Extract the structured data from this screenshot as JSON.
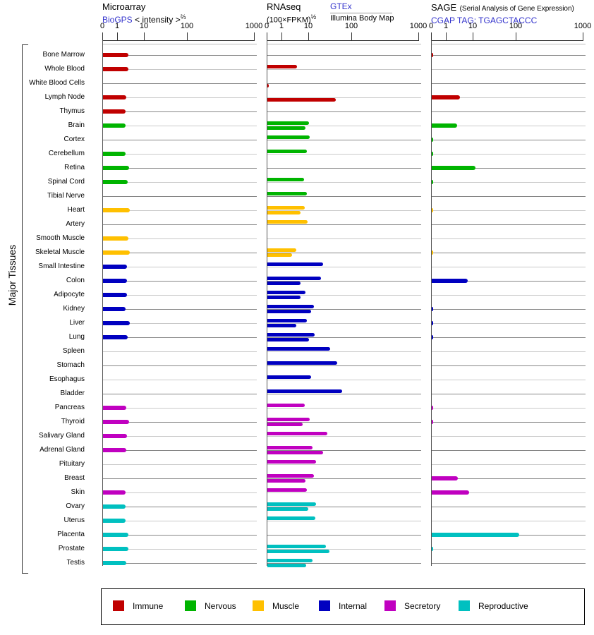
{
  "figure": {
    "left_axis_label": "Major Tissues"
  },
  "axis": {
    "ticks": [
      "0",
      "1",
      "10",
      "100",
      "1000"
    ]
  },
  "panels": [
    {
      "title": "Microarray",
      "link": "BioGPS",
      "sublabel": "< intensity >",
      "sublabel_exp": "⅔"
    },
    {
      "title": "RNAseq",
      "sublabel": "(100×FPKM)",
      "sublabel_exp": "½",
      "link": "GTEx",
      "sublink": "Illumina Body Map"
    },
    {
      "title": "SAGE",
      "title_note": "(Serial Analysis of Gene Expression)",
      "link": "CGAP",
      "tag_label": "TAG: TGAGCTACCC"
    }
  ],
  "legend": {
    "items": [
      {
        "key": "immune",
        "label": "Immune",
        "color": "#C00000"
      },
      {
        "key": "nervous",
        "label": "Nervous",
        "color": "#00B400"
      },
      {
        "key": "muscle",
        "label": "Muscle",
        "color": "#FFC000"
      },
      {
        "key": "internal",
        "label": "Internal",
        "color": "#0000C0"
      },
      {
        "key": "secretory",
        "label": "Secretory",
        "color": "#C000C0"
      },
      {
        "key": "reproductive",
        "label": "Reproductive",
        "color": "#00C0C0"
      }
    ]
  },
  "chart_data": {
    "type": "bar",
    "orientation": "horizontal",
    "xscale": "compressed-log",
    "x_ticks": [
      0,
      1,
      10,
      100,
      1000
    ],
    "panel_names": [
      "Microarray",
      "RNAseq",
      "SAGE"
    ],
    "rnaseq_sources": [
      "GTEx",
      "Illumina Body Map"
    ],
    "tissues": [
      {
        "name": "Bone Marrow",
        "group": "immune",
        "microarray": 2.5,
        "rnaseq_gtex": null,
        "rnaseq_illumina": null,
        "sage": 0.1
      },
      {
        "name": "Whole Blood",
        "group": "immune",
        "microarray": 2.5,
        "rnaseq_gtex": 3.6,
        "rnaseq_illumina": null,
        "sage": null
      },
      {
        "name": "White Blood Cells",
        "group": "immune",
        "microarray": null,
        "rnaseq_gtex": null,
        "rnaseq_illumina": 0.1,
        "sage": null
      },
      {
        "name": "Lymph Node",
        "group": "immune",
        "microarray": 2.1,
        "rnaseq_gtex": null,
        "rnaseq_illumina": 42,
        "sage": 3.2
      },
      {
        "name": "Thymus",
        "group": "immune",
        "microarray": 2.0,
        "rnaseq_gtex": null,
        "rnaseq_illumina": null,
        "sage": null
      },
      {
        "name": "Brain",
        "group": "nervous",
        "microarray": 2.0,
        "rnaseq_gtex": 10,
        "rnaseq_illumina": 7.4,
        "sage": 2.5
      },
      {
        "name": "Cortex",
        "group": "nervous",
        "microarray": null,
        "rnaseq_gtex": 10.5,
        "rnaseq_illumina": null,
        "sage": 0.1
      },
      {
        "name": "Cerebellum",
        "group": "nervous",
        "microarray": 2.0,
        "rnaseq_gtex": 8.3,
        "rnaseq_illumina": null,
        "sage": 0.1
      },
      {
        "name": "Retina",
        "group": "nervous",
        "microarray": 2.6,
        "rnaseq_gtex": null,
        "rnaseq_illumina": null,
        "sage": 11
      },
      {
        "name": "Spinal Cord",
        "group": "nervous",
        "microarray": 2.3,
        "rnaseq_gtex": 6.5,
        "rnaseq_illumina": null,
        "sage": 0.1
      },
      {
        "name": "Tibial Nerve",
        "group": "nervous",
        "microarray": null,
        "rnaseq_gtex": 8.3,
        "rnaseq_illumina": null,
        "sage": null
      },
      {
        "name": "Heart",
        "group": "muscle",
        "microarray": 2.8,
        "rnaseq_gtex": 7.0,
        "rnaseq_illumina": 4.8,
        "sage": 0.1
      },
      {
        "name": "Artery",
        "group": "muscle",
        "microarray": null,
        "rnaseq_gtex": 8.9,
        "rnaseq_illumina": null,
        "sage": null
      },
      {
        "name": "Smooth Muscle",
        "group": "muscle",
        "microarray": 2.5,
        "rnaseq_gtex": null,
        "rnaseq_illumina": null,
        "sage": null
      },
      {
        "name": "Skeletal Muscle",
        "group": "muscle",
        "microarray": 2.8,
        "rnaseq_gtex": 3.4,
        "rnaseq_illumina": 2.3,
        "sage": 0.1
      },
      {
        "name": "Small Intestine",
        "group": "internal",
        "microarray": 2.2,
        "rnaseq_gtex": 21,
        "rnaseq_illumina": null,
        "sage": null
      },
      {
        "name": "Colon",
        "group": "internal",
        "microarray": 2.2,
        "rnaseq_gtex": 19,
        "rnaseq_illumina": 4.8,
        "sage": 6.2
      },
      {
        "name": "Adipocyte",
        "group": "internal",
        "microarray": 2.2,
        "rnaseq_gtex": 7.4,
        "rnaseq_illumina": 4.8,
        "sage": null
      },
      {
        "name": "Kidney",
        "group": "internal",
        "microarray": 2.0,
        "rnaseq_gtex": 13,
        "rnaseq_illumina": 11,
        "sage": 0.1
      },
      {
        "name": "Liver",
        "group": "internal",
        "microarray": 2.8,
        "rnaseq_gtex": 8.3,
        "rnaseq_illumina": 3.4,
        "sage": 0.1
      },
      {
        "name": "Lung",
        "group": "internal",
        "microarray": 2.3,
        "rnaseq_gtex": 13.5,
        "rnaseq_illumina": 10,
        "sage": 0.1
      },
      {
        "name": "Spleen",
        "group": "internal",
        "microarray": null,
        "rnaseq_gtex": 31,
        "rnaseq_illumina": null,
        "sage": null
      },
      {
        "name": "Stomach",
        "group": "internal",
        "microarray": null,
        "rnaseq_gtex": 45,
        "rnaseq_illumina": null,
        "sage": null
      },
      {
        "name": "Esophagus",
        "group": "internal",
        "microarray": null,
        "rnaseq_gtex": 11,
        "rnaseq_illumina": null,
        "sage": null
      },
      {
        "name": "Bladder",
        "group": "internal",
        "microarray": null,
        "rnaseq_gtex": 59,
        "rnaseq_illumina": null,
        "sage": null
      },
      {
        "name": "Pancreas",
        "group": "secretory",
        "microarray": 2.1,
        "rnaseq_gtex": 7.0,
        "rnaseq_illumina": null,
        "sage": 0.1
      },
      {
        "name": "Thyroid",
        "group": "secretory",
        "microarray": 2.6,
        "rnaseq_gtex": 10.4,
        "rnaseq_illumina": 5.8,
        "sage": 0.1
      },
      {
        "name": "Salivary Gland",
        "group": "secretory",
        "microarray": 2.2,
        "rnaseq_gtex": 27,
        "rnaseq_illumina": null,
        "sage": null
      },
      {
        "name": "Adrenal Gland",
        "group": "secretory",
        "microarray": 2.1,
        "rnaseq_gtex": 12,
        "rnaseq_illumina": 21,
        "sage": null
      },
      {
        "name": "Pituitary",
        "group": "secretory",
        "microarray": null,
        "rnaseq_gtex": 14.6,
        "rnaseq_illumina": null,
        "sage": null
      },
      {
        "name": "Breast",
        "group": "secretory",
        "microarray": null,
        "rnaseq_gtex": 13,
        "rnaseq_illumina": 7.4,
        "sage": 2.6
      },
      {
        "name": "Skin",
        "group": "secretory",
        "microarray": 2.0,
        "rnaseq_gtex": 8.3,
        "rnaseq_illumina": null,
        "sage": 7.0
      },
      {
        "name": "Ovary",
        "group": "reproductive",
        "microarray": 1.9,
        "rnaseq_gtex": 14.6,
        "rnaseq_illumina": 9.4,
        "sage": null
      },
      {
        "name": "Uterus",
        "group": "reproductive",
        "microarray": 2.0,
        "rnaseq_gtex": 14,
        "rnaseq_illumina": null,
        "sage": null
      },
      {
        "name": "Placenta",
        "group": "reproductive",
        "microarray": 2.5,
        "rnaseq_gtex": null,
        "rnaseq_illumina": null,
        "sage": 110
      },
      {
        "name": "Prostate",
        "group": "reproductive",
        "microarray": 2.5,
        "rnaseq_gtex": 25,
        "rnaseq_illumina": 30,
        "sage": 0.1
      },
      {
        "name": "Testis",
        "group": "reproductive",
        "microarray": 2.1,
        "rnaseq_gtex": 12,
        "rnaseq_illumina": 7.8,
        "sage": null
      }
    ]
  }
}
